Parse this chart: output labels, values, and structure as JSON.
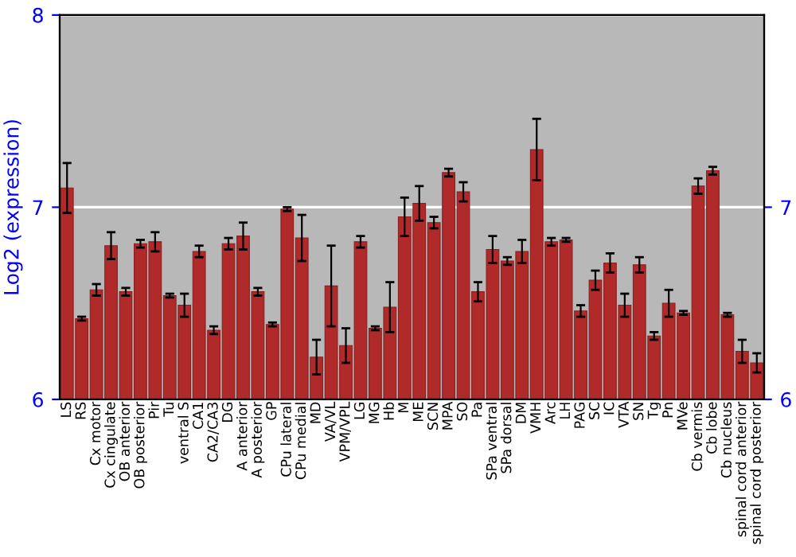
{
  "chart_data": {
    "type": "bar",
    "ylabel": "Log2 (expression)",
    "categories": [
      "LS",
      "RS",
      "Cx motor",
      "Cx cingulate",
      "OB anterior",
      "OB posterior",
      "Pir",
      "Tu",
      "ventral S",
      "CA1",
      "CA2/CA3",
      "DG",
      "A anterior",
      "A posterior",
      "GP",
      "CPu lateral",
      "CPu medial",
      "MD",
      "VA/VL",
      "VPM/VPL",
      "LG",
      "MG",
      "Hb",
      "M",
      "ME",
      "SCN",
      "MPA",
      "SO",
      "Pa",
      "SPa ventral",
      "SPa dorsal",
      "DM",
      "VMH",
      "Arc",
      "LH",
      "PAG",
      "SC",
      "IC",
      "VTA",
      "SN",
      "Tg",
      "Pn",
      "MVe",
      "Cb vermis",
      "Cb lobe",
      "Cb nucleus",
      "spinal cord anterior",
      "spinal cord posterior"
    ],
    "values": [
      7.1,
      6.42,
      6.57,
      6.8,
      6.56,
      6.81,
      6.82,
      6.54,
      6.49,
      6.77,
      6.36,
      6.81,
      6.85,
      6.56,
      6.39,
      6.99,
      6.84,
      6.22,
      6.59,
      6.28,
      6.82,
      6.37,
      6.48,
      6.95,
      7.02,
      6.92,
      7.18,
      7.08,
      6.56,
      6.78,
      6.72,
      6.77,
      7.3,
      6.82,
      6.83,
      6.46,
      6.62,
      6.71,
      6.49,
      6.7,
      6.33,
      6.5,
      6.45,
      7.11,
      7.19,
      6.44,
      6.25,
      6.19
    ],
    "errors": [
      0.13,
      0.01,
      0.03,
      0.07,
      0.02,
      0.02,
      0.05,
      0.01,
      0.06,
      0.03,
      0.02,
      0.03,
      0.07,
      0.02,
      0.01,
      0.01,
      0.12,
      0.09,
      0.21,
      0.09,
      0.03,
      0.01,
      0.13,
      0.1,
      0.09,
      0.03,
      0.02,
      0.05,
      0.05,
      0.07,
      0.02,
      0.06,
      0.16,
      0.02,
      0.01,
      0.03,
      0.05,
      0.05,
      0.06,
      0.04,
      0.02,
      0.07,
      0.01,
      0.04,
      0.02,
      0.01,
      0.06,
      0.05
    ],
    "color": "#b02a2a",
    "ylim": [
      6,
      8
    ],
    "yticks": [
      6,
      7,
      8
    ],
    "y2lim": [
      6,
      8
    ],
    "y2ticks": [
      6,
      7
    ],
    "grid": "y"
  }
}
